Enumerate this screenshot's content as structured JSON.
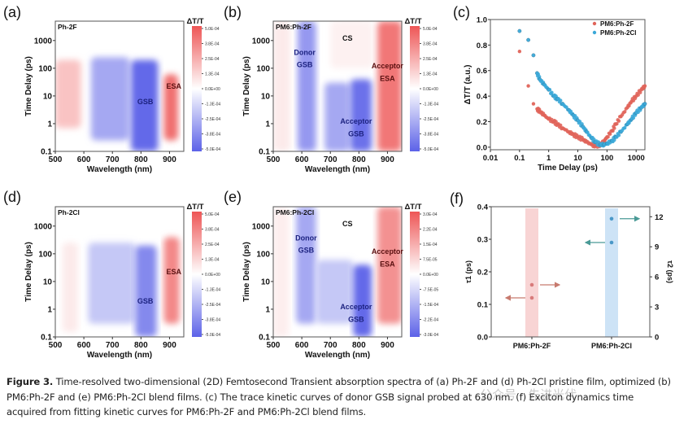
{
  "figure": {
    "caption_label": "Figure 3.",
    "caption_text": " Time-resolved two-dimensional (2D) Femtosecond Transient absorption spectra of (a) Ph-2F and (d) Ph-2Cl pristine film, optimized (b) PM6:Ph-2F and (e) PM6:Ph-2Cl blend films. (c) The trace kinetic curves of donor GSB signal probed at 630 nm. (f) Exciton dynamics time acquired from fitting kinetic curves for PM6:Ph-2F and PM6:Ph-2Cl blend films.",
    "watermark": "公众号 · 先进光伏"
  },
  "chart_data": [
    {
      "panel": "(a)",
      "type": "heatmap",
      "sample": "Ph-2F",
      "xlabel": "Wavelength (nm)",
      "ylabel": "Time Delay (ps)",
      "xlim": [
        500,
        950
      ],
      "xticks": [
        "500",
        "600",
        "700",
        "800",
        "900"
      ],
      "yscale": "log",
      "ylim": [
        0.1,
        5000
      ],
      "yticks": [
        "0.1",
        "1",
        "10",
        "100",
        "1000"
      ],
      "colorbar_title": "ΔT/T",
      "colorbar_range": [
        -0.0005,
        0.0005
      ],
      "colorbar_ticks": [
        "5.0E-04",
        "3.8E-04",
        "2.5E-04",
        "1.3E-04",
        "0.0E+00",
        "-1.3E-04",
        "-2.5E-04",
        "-3.8E-04",
        "-5.0E-04"
      ],
      "annotations": [
        {
          "text": "GSB",
          "wavelength": 815,
          "delay": 5,
          "kind": "negative"
        },
        {
          "text": "ESA",
          "wavelength": 915,
          "delay": 18,
          "kind": "positive"
        }
      ],
      "features": [
        {
          "wl": [
            500,
            590
          ],
          "t": [
            0.7,
            200
          ],
          "amp": 0.35
        },
        {
          "wl": [
            625,
            760
          ],
          "t": [
            0.25,
            250
          ],
          "amp": -0.55
        },
        {
          "wl": [
            765,
            860
          ],
          "t": [
            0.1,
            200
          ],
          "amp": -0.95
        },
        {
          "wl": [
            880,
            930
          ],
          "t": [
            0.25,
            60
          ],
          "amp": 0.85
        }
      ]
    },
    {
      "panel": "(b)",
      "type": "heatmap",
      "sample": "PM6:Ph-2F",
      "xlabel": "Wavelength (nm)",
      "ylabel": "Time Delay (ps)",
      "xlim": [
        500,
        950
      ],
      "xticks": [
        "500",
        "600",
        "700",
        "800",
        "900"
      ],
      "yscale": "log",
      "ylim": [
        0.1,
        5000
      ],
      "yticks": [
        "0.1",
        "1",
        "10",
        "100",
        "1000"
      ],
      "colorbar_title": "ΔT/T",
      "colorbar_range": [
        -0.0005,
        0.0005
      ],
      "colorbar_ticks": [
        "5.0E-04",
        "3.8E-04",
        "2.5E-04",
        "1.3E-04",
        "0.0E+00",
        "-1.3E-04",
        "-2.5E-04",
        "-3.8E-04",
        "-5.0E-04"
      ],
      "annotations": [
        {
          "text": "CS",
          "wavelength": 760,
          "delay": 1000,
          "kind": "neutral"
        },
        {
          "text": "Donor",
          "wavelength": 610,
          "delay": 300,
          "kind": "negative"
        },
        {
          "text": "GSB",
          "wavelength": 610,
          "delay": 110,
          "kind": "negative"
        },
        {
          "text": "Acceptor",
          "wavelength": 900,
          "delay": 100,
          "kind": "positive"
        },
        {
          "text": "ESA",
          "wavelength": 900,
          "delay": 35,
          "kind": "positive"
        },
        {
          "text": "Acceptor",
          "wavelength": 790,
          "delay": 1,
          "kind": "negative"
        },
        {
          "text": "GSB",
          "wavelength": 790,
          "delay": 0.35,
          "kind": "negative"
        }
      ],
      "features": [
        {
          "wl": [
            500,
            560
          ],
          "t": [
            0.1,
            5000
          ],
          "amp": 0.12
        },
        {
          "wl": [
            585,
            650
          ],
          "t": [
            0.1,
            5000
          ],
          "amp": -0.65
        },
        {
          "wl": [
            680,
            770
          ],
          "t": [
            0.1,
            30
          ],
          "amp": -0.55
        },
        {
          "wl": [
            770,
            845
          ],
          "t": [
            0.1,
            40
          ],
          "amp": -0.9
        },
        {
          "wl": [
            700,
            850
          ],
          "t": [
            100,
            5000
          ],
          "amp": 0.08
        },
        {
          "wl": [
            865,
            950
          ],
          "t": [
            0.1,
            5000
          ],
          "amp": 0.8
        }
      ]
    },
    {
      "panel": "(c)",
      "type": "scatter",
      "xlabel": "Time Delay (ps)",
      "ylabel": "ΔT/T (a.u.)",
      "xscale": "log",
      "xlim": [
        0.01,
        2000
      ],
      "xticks": [
        "0.01",
        "0.1",
        "1",
        "10",
        "100",
        "1000"
      ],
      "ylim": [
        -0.02,
        1.0
      ],
      "yticks": [
        "0.0",
        "0.2",
        "0.4",
        "0.6",
        "0.8",
        "1.0"
      ],
      "legend_position": "top-right",
      "series": [
        {
          "name": "PM6:Ph-2F",
          "color": "#e0645a",
          "x": [
            0.1,
            0.2,
            0.3,
            0.4,
            0.5,
            0.7,
            1,
            1.5,
            2,
            3,
            5,
            7,
            10,
            15,
            20,
            30,
            40,
            60,
            80,
            100,
            150,
            200,
            300,
            500,
            700,
            1000,
            1500,
            2000
          ],
          "y": [
            0.75,
            0.48,
            0.34,
            0.3,
            0.28,
            0.25,
            0.22,
            0.2,
            0.18,
            0.15,
            0.12,
            0.1,
            0.08,
            0.06,
            0.04,
            0.02,
            0.01,
            0.02,
            0.05,
            0.08,
            0.13,
            0.18,
            0.24,
            0.31,
            0.36,
            0.4,
            0.45,
            0.48
          ]
        },
        {
          "name": "PM6:Ph-2Cl",
          "color": "#3aa8d8",
          "x": [
            0.1,
            0.2,
            0.3,
            0.4,
            0.5,
            0.7,
            1,
            1.5,
            2,
            3,
            5,
            7,
            10,
            15,
            20,
            30,
            40,
            60,
            80,
            100,
            150,
            200,
            300,
            500,
            700,
            1000,
            1500,
            2000
          ],
          "y": [
            0.91,
            0.84,
            0.72,
            0.58,
            0.53,
            0.49,
            0.45,
            0.4,
            0.38,
            0.34,
            0.29,
            0.25,
            0.21,
            0.16,
            0.12,
            0.07,
            0.04,
            0.02,
            0.02,
            0.03,
            0.05,
            0.08,
            0.12,
            0.18,
            0.22,
            0.27,
            0.31,
            0.34
          ]
        }
      ]
    },
    {
      "panel": "(d)",
      "type": "heatmap",
      "sample": "Ph-2Cl",
      "xlabel": "Wavelength (nm)",
      "ylabel": "Time Delay (ps)",
      "xlim": [
        500,
        950
      ],
      "xticks": [
        "500",
        "600",
        "700",
        "800",
        "900"
      ],
      "yscale": "log",
      "ylim": [
        0.1,
        5000
      ],
      "yticks": [
        "0.1",
        "1",
        "10",
        "100",
        "1000"
      ],
      "colorbar_title": "ΔT/T",
      "colorbar_range": [
        -0.0005,
        0.0005
      ],
      "colorbar_ticks": [
        "5.0E-04",
        "3.8E-04",
        "2.5E-04",
        "1.3E-04",
        "0.0E+00",
        "-1.3E-04",
        "-2.5E-04",
        "-3.8E-04",
        "-5.0E-04"
      ],
      "annotations": [
        {
          "text": "GSB",
          "wavelength": 815,
          "delay": 1.6,
          "kind": "negative"
        },
        {
          "text": "ESA",
          "wavelength": 915,
          "delay": 18,
          "kind": "positive"
        }
      ],
      "features": [
        {
          "wl": [
            525,
            580
          ],
          "t": [
            0.15,
            250
          ],
          "amp": 0.12
        },
        {
          "wl": [
            615,
            780
          ],
          "t": [
            0.3,
            250
          ],
          "amp": -0.35
        },
        {
          "wl": [
            780,
            855
          ],
          "t": [
            0.1,
            200
          ],
          "amp": -0.75
        },
        {
          "wl": [
            880,
            935
          ],
          "t": [
            0.3,
            400
          ],
          "amp": 0.7
        }
      ]
    },
    {
      "panel": "(e)",
      "type": "heatmap",
      "sample": "PM6:Ph-2Cl",
      "xlabel": "Wavelength (nm)",
      "ylabel": "Time Delay (ps)",
      "xlim": [
        500,
        950
      ],
      "xticks": [
        "500",
        "600",
        "700",
        "800",
        "900"
      ],
      "yscale": "log",
      "ylim": [
        0.1,
        5000
      ],
      "yticks": [
        "0.1",
        "1",
        "10",
        "100",
        "1000"
      ],
      "colorbar_title": "ΔT/T",
      "colorbar_range": [
        -0.0003,
        0.0003
      ],
      "colorbar_ticks": [
        "3.0E-04",
        "2.2E-04",
        "1.5E-04",
        "7.5E-05",
        "0.0E+00",
        "-7.5E-05",
        "-1.5E-04",
        "-2.2E-04",
        "-3.0E-04"
      ],
      "annotations": [
        {
          "text": "CS",
          "wavelength": 760,
          "delay": 1000,
          "kind": "neutral"
        },
        {
          "text": "Donor",
          "wavelength": 615,
          "delay": 300,
          "kind": "negative"
        },
        {
          "text": "GSB",
          "wavelength": 615,
          "delay": 110,
          "kind": "negative"
        },
        {
          "text": "Acceptor",
          "wavelength": 900,
          "delay": 100,
          "kind": "positive"
        },
        {
          "text": "ESA",
          "wavelength": 900,
          "delay": 35,
          "kind": "positive"
        },
        {
          "text": "Acceptor",
          "wavelength": 790,
          "delay": 1,
          "kind": "negative"
        },
        {
          "text": "GSB",
          "wavelength": 790,
          "delay": 0.35,
          "kind": "negative"
        }
      ],
      "features": [
        {
          "wl": [
            500,
            555
          ],
          "t": [
            0.1,
            5000
          ],
          "amp": 0.1
        },
        {
          "wl": [
            580,
            650
          ],
          "t": [
            0.3,
            5000
          ],
          "amp": -0.55
        },
        {
          "wl": [
            650,
            780
          ],
          "t": [
            0.3,
            60
          ],
          "amp": -0.35
        },
        {
          "wl": [
            780,
            845
          ],
          "t": [
            0.1,
            40
          ],
          "amp": -0.95
        },
        {
          "wl": [
            865,
            950
          ],
          "t": [
            0.3,
            5000
          ],
          "amp": 0.65
        }
      ]
    },
    {
      "panel": "(f)",
      "type": "scatter",
      "categories": [
        "PM6:Ph-2F",
        "PM6:Ph-2Cl"
      ],
      "ylabel_left": "τ1 (ps)",
      "ylabel_right": "τ2 (ps)",
      "ylim_left": [
        0,
        0.4
      ],
      "yticks_left": [
        "0.0",
        "0.1",
        "0.2",
        "0.3",
        "0.4"
      ],
      "ylim_right": [
        0,
        13
      ],
      "yticks_right": [
        "0",
        "3",
        "6",
        "9",
        "12"
      ],
      "band_colors": [
        "#f7cccc",
        "#c4def5"
      ],
      "series": [
        {
          "name": "τ1",
          "axis": "left",
          "values": [
            0.12,
            0.29
          ]
        },
        {
          "name": "τ2",
          "axis": "right",
          "values": [
            5.2,
            11.8
          ]
        }
      ],
      "point_colors": [
        "#d87a7a",
        "#4a98c8"
      ]
    }
  ]
}
